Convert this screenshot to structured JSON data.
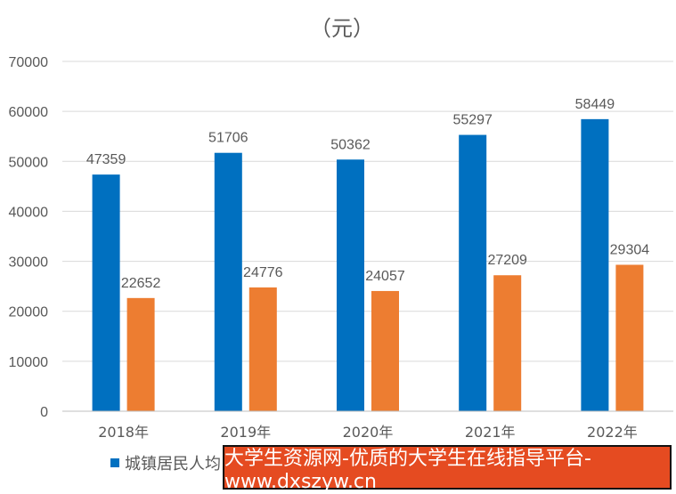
{
  "chart_data": {
    "type": "bar",
    "title": "（元）",
    "categories": [
      "2018年",
      "2019年",
      "2020年",
      "2021年",
      "2022年"
    ],
    "series": [
      {
        "name": "城镇居民人均",
        "color": "#0070c0",
        "values": [
          47359,
          51706,
          50362,
          55297,
          58449
        ]
      },
      {
        "name": "",
        "color": "#ed7d31",
        "values": [
          22652,
          24776,
          24057,
          27209,
          29304
        ]
      }
    ],
    "ylim": [
      0,
      70000
    ],
    "yticks": [
      0,
      10000,
      20000,
      30000,
      40000,
      50000,
      60000,
      70000
    ],
    "grid": true,
    "legend_position": "bottom",
    "colors": {
      "grid": "#d9d9d9",
      "text": "#595959",
      "axis": "#bfbfbf"
    }
  },
  "watermark": {
    "text": "大学生资源网-优质的大学生在线指导平台-www.dxszyw.cn"
  }
}
